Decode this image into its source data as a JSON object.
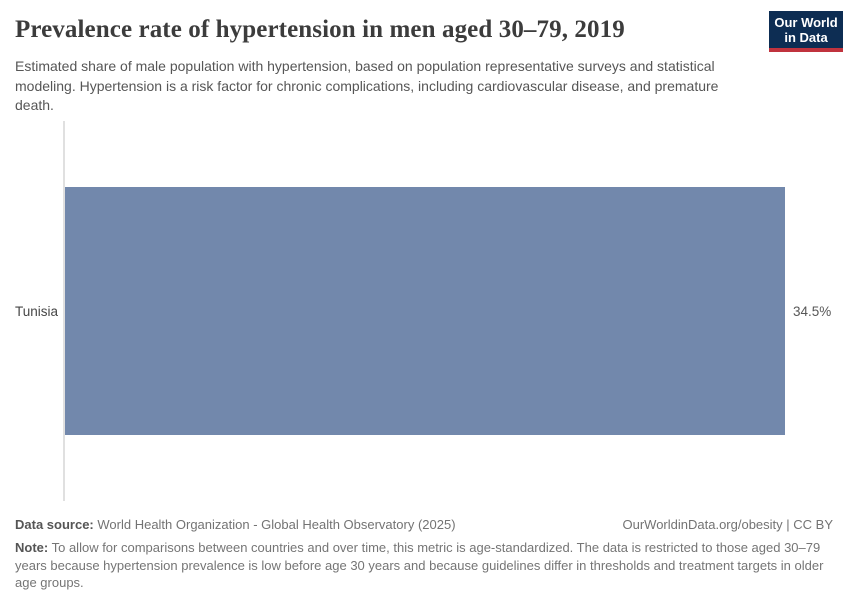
{
  "header": {
    "title": "Prevalence rate of hypertension in men aged 30–79, 2019",
    "subtitle": "Estimated share of male population with hypertension, based on population representative surveys and statistical modeling. Hypertension is a risk factor for chronic complications, including cardiovascular disease, and premature death."
  },
  "logo": {
    "line1": "Our World",
    "line2": "in Data",
    "bg_color": "#0d2d53",
    "accent_color": "#c0333e"
  },
  "chart_data": {
    "type": "bar",
    "orientation": "horizontal",
    "title": "Prevalence rate of hypertension in men aged 30–79, 2019",
    "categories": [
      "Tunisia"
    ],
    "values": [
      34.5
    ],
    "value_labels": [
      "34.5%"
    ],
    "unit": "%",
    "xlabel": "",
    "ylabel": "",
    "xlim": [
      0,
      34.5
    ],
    "grid": false,
    "legend": false,
    "bar_color": "#7288ac"
  },
  "footer": {
    "datasource_label": "Data source:",
    "datasource_text": "World Health Organization - Global Health Observatory (2025)",
    "attribution": "OurWorldinData.org/obesity | CC BY",
    "note_label": "Note:",
    "note_text": "To allow for comparisons between countries and over time, this metric is age-standardized. The data is restricted to those aged 30–79 years because hypertension prevalence is low before age 30 years and because guidelines differ in thresholds and treatment targets in older age groups."
  }
}
